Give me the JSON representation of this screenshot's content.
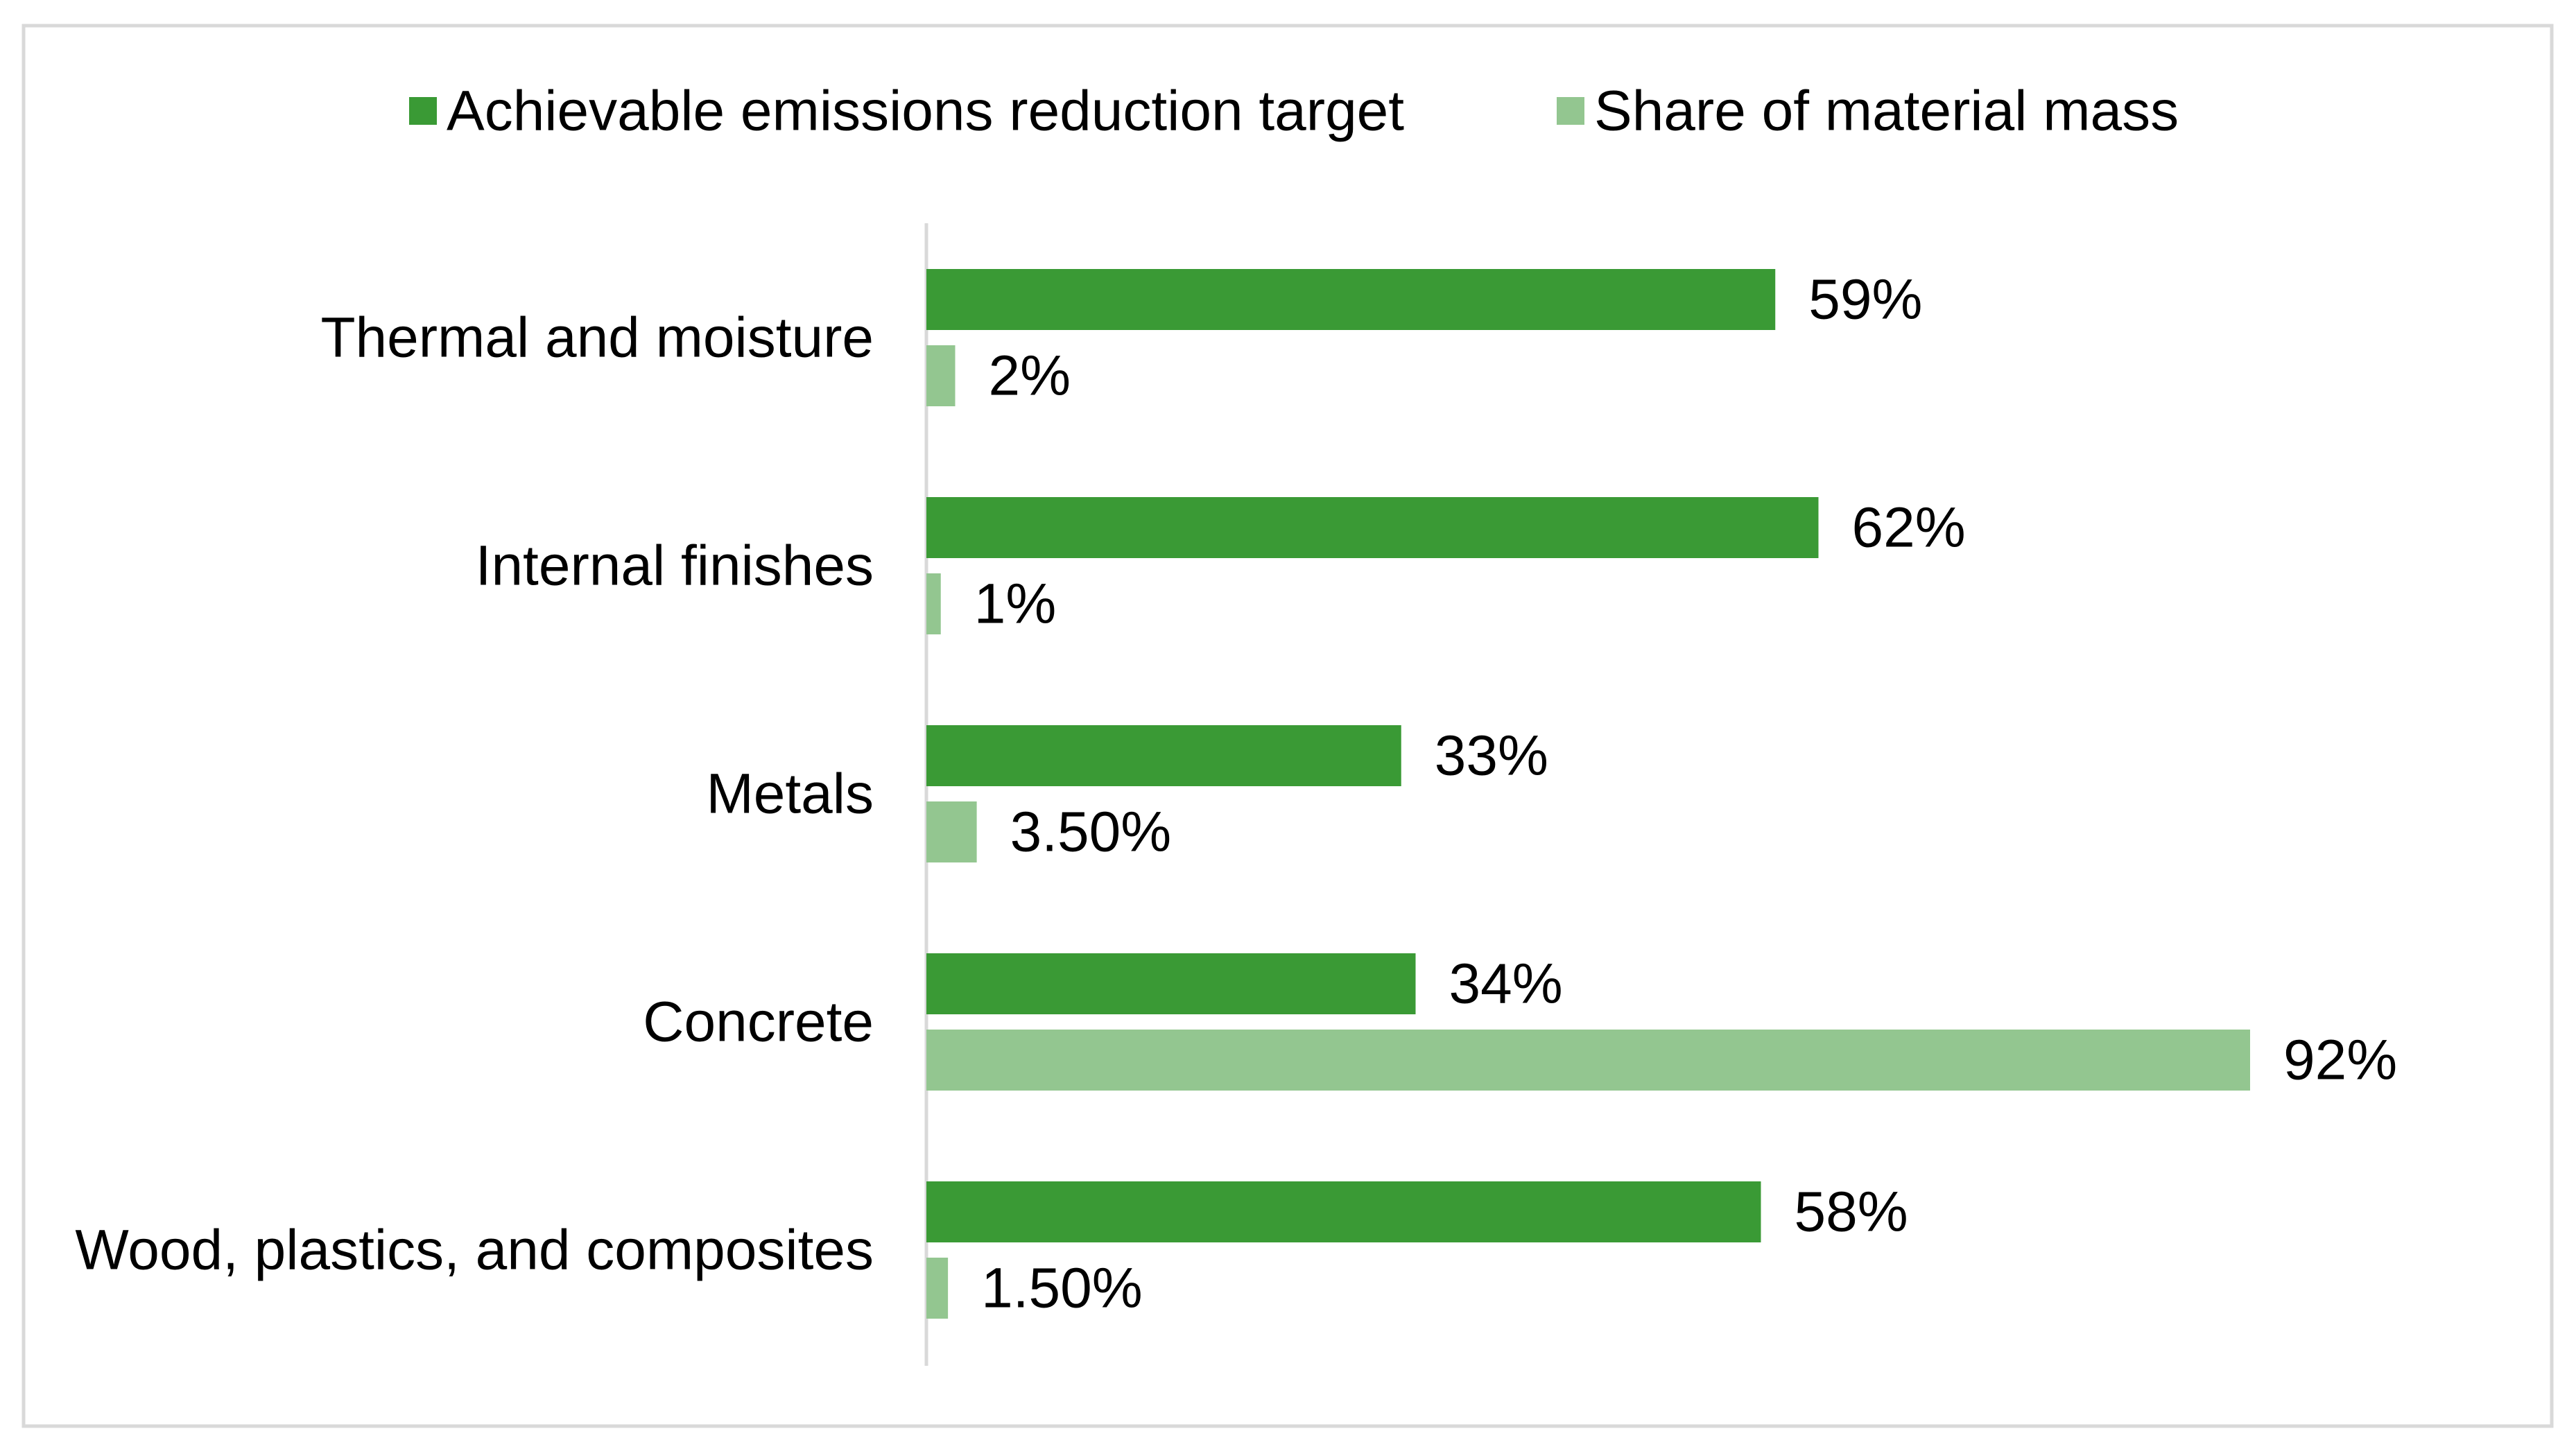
{
  "chart_data": {
    "type": "bar",
    "orientation": "horizontal",
    "categories": [
      "Thermal and moisture",
      "Internal finishes",
      "Metals",
      "Concrete",
      "Wood, plastics, and composites"
    ],
    "series": [
      {
        "name": "Achievable emissions reduction target",
        "values": [
          59,
          62,
          33,
          34,
          58
        ],
        "labels": [
          "59%",
          "62%",
          "33%",
          "34%",
          "58%"
        ],
        "color": "#3a9a35"
      },
      {
        "name": "Share of material mass",
        "values": [
          2,
          1,
          3.5,
          92,
          1.5
        ],
        "labels": [
          "2%",
          "1%",
          "3.50%",
          "92%",
          "1.50%"
        ],
        "color": "#93c690"
      }
    ],
    "xlim": [
      0,
      100
    ],
    "unit": "%",
    "grid": false,
    "legend_position": "top",
    "axis_line_color": "#d9d9d9",
    "border_color": "#d9d9d9"
  }
}
